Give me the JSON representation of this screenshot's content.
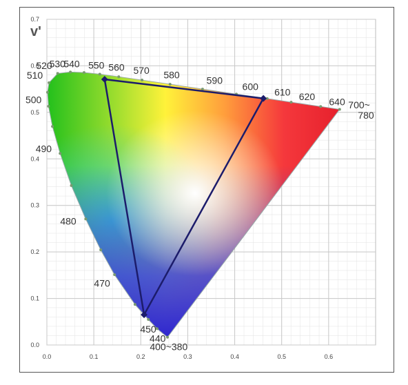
{
  "chart_data": {
    "type": "chromaticity",
    "y_label": "v'",
    "xlim": [
      0,
      0.7
    ],
    "ylim": [
      0,
      0.7
    ],
    "xticks": [
      {
        "value": 0,
        "label": "0.0"
      },
      0.1,
      0.2,
      0.3,
      0.4,
      0.5,
      0.6
    ],
    "yticks": [
      {
        "value": 0,
        "label": "0.0"
      },
      0.1,
      0.2,
      0.3,
      0.4,
      0.5,
      0.6,
      0.7
    ],
    "grid": true,
    "locus": {
      "u": [
        0.2568,
        0.2347,
        0.2161,
        0.1877,
        0.1441,
        0.1147,
        0.0828,
        0.0521,
        0.0282,
        0.0119,
        0.0035,
        0.0014,
        0.0046,
        0.0231,
        0.0501,
        0.0792,
        0.1127,
        0.1531,
        0.2026,
        0.2623,
        0.3315,
        0.4035,
        0.4692,
        0.5202,
        0.583,
        0.6234
      ],
      "v": [
        0.0166,
        0.035,
        0.0549,
        0.0871,
        0.151,
        0.2044,
        0.2708,
        0.3427,
        0.4117,
        0.4698,
        0.5131,
        0.5431,
        0.5638,
        0.5837,
        0.5868,
        0.5856,
        0.5821,
        0.5766,
        0.5694,
        0.5604,
        0.5501,
        0.5393,
        0.5296,
        0.5219,
        0.5125,
        0.5065
      ],
      "labels": [
        "400~380",
        "440",
        "450",
        null,
        "470",
        null,
        "480",
        null,
        "490",
        null,
        "500",
        null,
        "510",
        "520",
        "530",
        "540",
        "550",
        "560",
        "570",
        "580",
        "590",
        "600",
        "610",
        "620",
        "640",
        "700~\n780"
      ]
    },
    "gamut": {
      "color": "#1c1c6b",
      "u": [
        0.123,
        0.461,
        0.207
      ],
      "v": [
        0.571,
        0.53,
        0.065
      ]
    }
  }
}
